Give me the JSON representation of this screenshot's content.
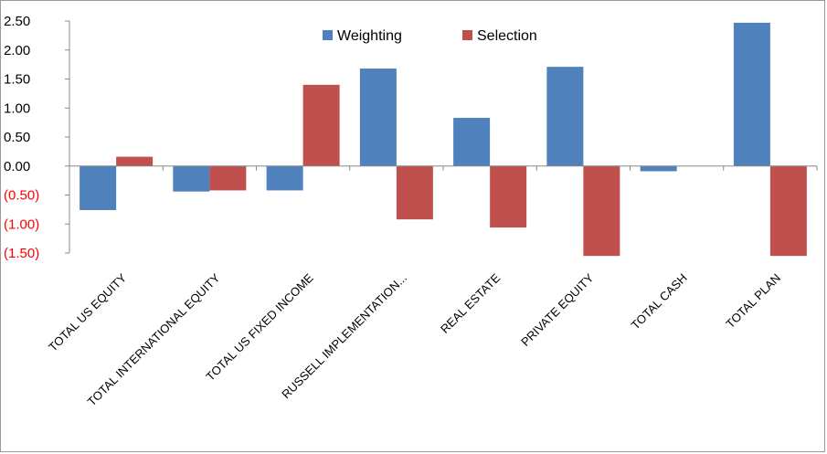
{
  "chart_data": {
    "type": "bar",
    "categories": [
      "TOTAL US EQUITY",
      "TOTAL INTERNATIONAL EQUITY",
      "TOTAL US FIXED INCOME",
      "RUSSELL IMPLEMENTATION...",
      "REAL ESTATE",
      "PRIVATE EQUITY",
      "TOTAL CASH",
      "TOTAL PLAN"
    ],
    "series": [
      {
        "name": "Weighting",
        "color": "#4f81bd",
        "values": [
          -0.76,
          -0.44,
          -0.42,
          1.68,
          0.83,
          1.71,
          -0.09,
          2.47
        ]
      },
      {
        "name": "Selection",
        "color": "#c0504d",
        "values": [
          0.16,
          -0.42,
          1.4,
          -0.92,
          -1.06,
          -1.55,
          0.0,
          -1.55
        ]
      }
    ],
    "ylim": [
      -1.5,
      2.5
    ],
    "yticks": [
      2.5,
      2.0,
      1.5,
      1.0,
      0.5,
      0.0,
      -0.5,
      -1.0,
      -1.5
    ],
    "ytick_labels": [
      "2.50",
      "2.00",
      "1.50",
      "1.00",
      "0.50",
      "0.00",
      "(0.50)",
      "(1.00)",
      "(1.50)"
    ],
    "negative_tick_color": "#ff0000",
    "legend": "top-center",
    "grid": false
  }
}
